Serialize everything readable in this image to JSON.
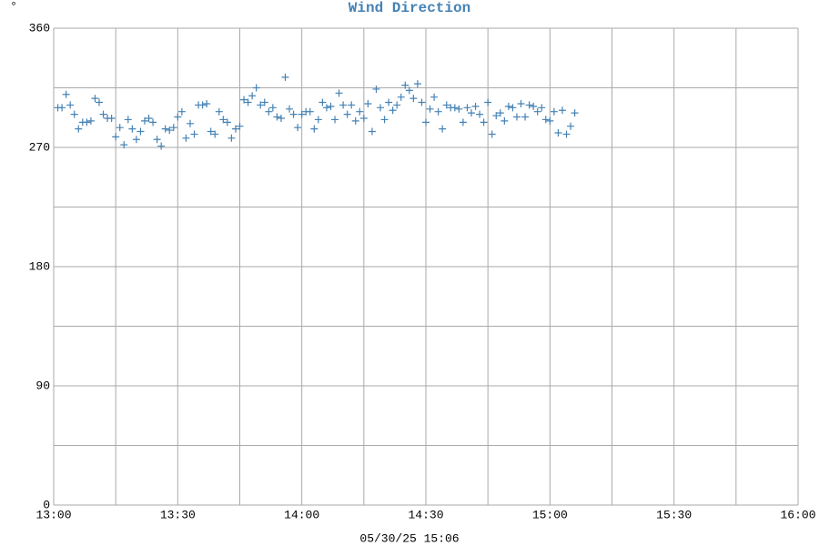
{
  "chart_data": {
    "type": "scatter",
    "title": "Wind Direction",
    "ylabel": "°",
    "xlabel": "05/30/25 15:06",
    "color": "#4682b4",
    "marker": "+",
    "grid": true,
    "xlim": [
      780,
      960
    ],
    "xticks": [
      {
        "value": 780,
        "label": "13:00"
      },
      {
        "value": 810,
        "label": "13:30"
      },
      {
        "value": 840,
        "label": "14:00"
      },
      {
        "value": 870,
        "label": "14:30"
      },
      {
        "value": 900,
        "label": "15:00"
      },
      {
        "value": 930,
        "label": "15:30"
      },
      {
        "value": 960,
        "label": "16:00"
      }
    ],
    "xminorticks": [
      795,
      825,
      855,
      885,
      915,
      945
    ],
    "ylim": [
      0,
      360
    ],
    "yticks": [
      0,
      90,
      180,
      270,
      360
    ],
    "yminorticks": [
      45,
      135,
      225,
      315
    ],
    "x": [
      781,
      782,
      783,
      784,
      785,
      786,
      787,
      788,
      789,
      790,
      791,
      792,
      793,
      794,
      795,
      796,
      797,
      798,
      799,
      800,
      801,
      802,
      803,
      804,
      805,
      806,
      807,
      808,
      809,
      810,
      811,
      812,
      813,
      814,
      815,
      816,
      817,
      818,
      819,
      820,
      821,
      822,
      823,
      824,
      825,
      826,
      827,
      828,
      829,
      830,
      831,
      832,
      833,
      834,
      835,
      836,
      837,
      838,
      839,
      840,
      841,
      842,
      843,
      844,
      845,
      846,
      847,
      848,
      849,
      850,
      851,
      852,
      853,
      854,
      855,
      856,
      857,
      858,
      859,
      860,
      861,
      862,
      863,
      864,
      865,
      866,
      867,
      868,
      869,
      870,
      871,
      872,
      873,
      874,
      875,
      876,
      877,
      878,
      879,
      880,
      881,
      882,
      883,
      884,
      885,
      886,
      887,
      888,
      889,
      890,
      891,
      892,
      893,
      894,
      895,
      896,
      897,
      898,
      899,
      900,
      901,
      902,
      903,
      904,
      905,
      906
    ],
    "values": [
      300,
      300,
      310,
      302,
      295,
      284,
      289,
      289,
      290,
      307,
      304,
      295,
      292,
      292,
      278,
      285,
      272,
      291,
      284,
      276,
      282,
      290,
      292,
      289,
      276,
      271,
      284,
      283,
      285,
      293,
      297,
      277,
      288,
      280,
      302,
      302,
      303,
      282,
      280,
      297,
      291,
      289,
      277,
      284,
      286,
      306,
      304,
      309,
      315,
      302,
      304,
      297,
      300,
      293,
      292,
      323,
      299,
      295,
      285,
      295,
      297,
      297,
      284,
      291,
      304,
      300,
      301,
      291,
      311,
      302,
      295,
      302,
      290,
      297,
      292,
      303,
      282,
      314,
      300,
      291,
      304,
      298,
      302,
      308,
      317,
      313,
      307,
      318,
      304,
      289,
      299,
      308,
      297,
      284,
      302,
      300,
      300,
      299,
      289,
      300,
      296,
      301,
      295,
      289,
      304,
      280,
      294,
      296,
      290,
      301,
      300,
      293,
      303,
      293,
      302,
      301,
      297,
      300,
      291,
      290,
      297,
      281,
      298,
      280,
      286,
      296
    ]
  }
}
